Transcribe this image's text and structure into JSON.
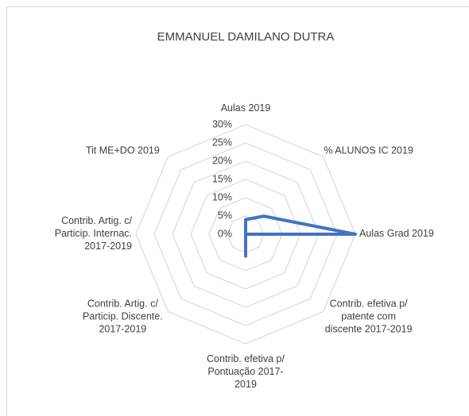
{
  "chart_data": {
    "type": "radar",
    "title": "EMMANUEL DAMILANO DUTRA",
    "categories": [
      "Aulas 2019",
      "% ALUNOS IC 2019",
      "Aulas Grad 2019",
      "Contrib. efetiva p/\npatente com\ndiscente 2017-2019",
      "Contrib. efetiva p/\nPontuação 2017-\n2019",
      "Contrib. Artig. c/\nParticip. Discente.\n2017-2019",
      "Contrib. Artig. c/\nParticip. Internac.\n2017-2019",
      "Tit ME+DO 2019"
    ],
    "series": [
      {
        "name": null,
        "color": "#4472c4",
        "values": [
          4,
          7,
          30,
          0,
          6,
          0,
          0,
          0
        ]
      }
    ],
    "ylim": [
      0,
      30
    ],
    "yticks": [
      {
        "value": 0,
        "label": "0%"
      },
      {
        "value": 5,
        "label": "5%"
      },
      {
        "value": 10,
        "label": "10%"
      },
      {
        "value": 15,
        "label": "15%"
      },
      {
        "value": 20,
        "label": "20%"
      },
      {
        "value": 25,
        "label": "25%"
      },
      {
        "value": 30,
        "label": "30%"
      }
    ],
    "grid": true
  }
}
